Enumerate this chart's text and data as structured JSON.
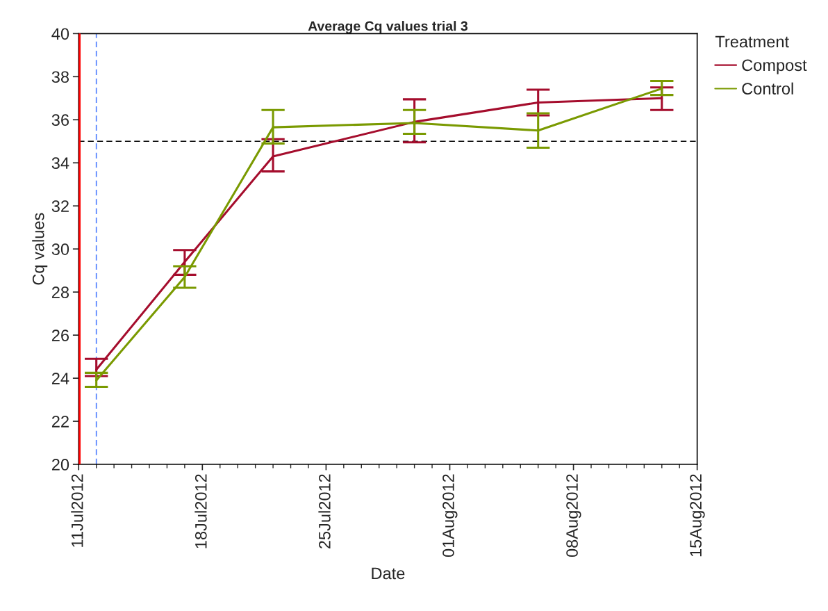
{
  "chart_data": {
    "type": "line",
    "title": "Average Cq values trial 3",
    "xlabel": "Date",
    "ylabel": "Cq values",
    "legend_title": "Treatment",
    "x": [
      "2012-07-12",
      "2012-07-17",
      "2012-07-22",
      "2012-07-30",
      "2012-08-06",
      "2012-08-13"
    ],
    "series": [
      {
        "name": "Compost",
        "color": "#a50d2d",
        "values": [
          24.4,
          29.4,
          34.3,
          35.9,
          36.8,
          37.0
        ],
        "errors": [
          [
            24.1,
            24.9
          ],
          [
            28.8,
            29.95
          ],
          [
            33.6,
            35.1
          ],
          [
            34.95,
            36.95
          ],
          [
            36.2,
            37.4
          ],
          [
            36.45,
            37.5
          ]
        ]
      },
      {
        "name": "Control",
        "color": "#7a9a01",
        "values": [
          23.9,
          28.7,
          35.65,
          35.85,
          35.5,
          37.45
        ],
        "errors": [
          [
            23.6,
            24.25
          ],
          [
            28.2,
            29.2
          ],
          [
            34.9,
            36.45
          ],
          [
            35.35,
            36.45
          ],
          [
            34.7,
            36.3
          ],
          [
            37.15,
            37.8
          ]
        ]
      }
    ],
    "xlim": [
      "2012-07-11",
      "2012-08-15"
    ],
    "xticks": [
      {
        "value": "2012-07-11",
        "label": "11Jul2012"
      },
      {
        "value": "2012-07-18",
        "label": "18Jul2012"
      },
      {
        "value": "2012-07-25",
        "label": "25Jul2012"
      },
      {
        "value": "2012-08-01",
        "label": "01Aug2012"
      },
      {
        "value": "2012-08-08",
        "label": "08Aug2012"
      },
      {
        "value": "2012-08-15",
        "label": "15Aug2012"
      }
    ],
    "ylim": [
      20,
      40
    ],
    "yticks": [
      20,
      22,
      24,
      26,
      28,
      30,
      32,
      34,
      36,
      38,
      40
    ],
    "ref_lines": [
      {
        "axis": "y",
        "value": 35,
        "color": "#000000",
        "line_style": "dashed"
      },
      {
        "axis": "x",
        "value": "2012-07-12",
        "color": "#4f7fff",
        "line_style": "dashed"
      },
      {
        "axis": "x",
        "value": "2012-07-11",
        "color": "#ff0000",
        "line_style": "solid"
      }
    ],
    "grid": false,
    "legend": "top right",
    "marker": "none",
    "line_style": "solid"
  }
}
